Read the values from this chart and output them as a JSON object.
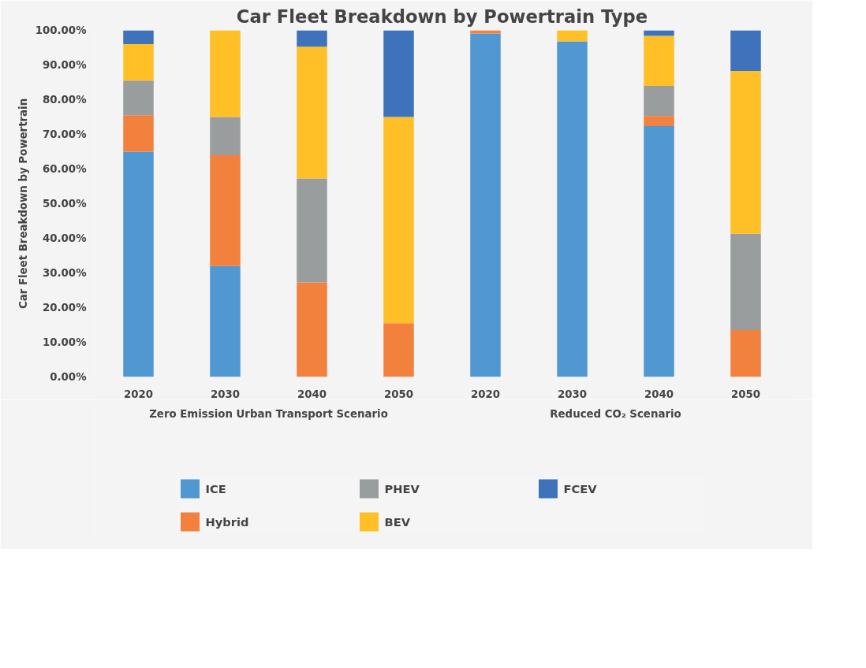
{
  "chart_data": {
    "type": "bar",
    "stacked": true,
    "title": "Car Fleet Breakdown by Powertrain Type",
    "ylabel": "Car Fleet Breakdown by Powertrain",
    "categories": [
      "2020",
      "2030",
      "2040",
      "2050",
      "2020",
      "2030",
      "2040",
      "2050"
    ],
    "series": [
      {
        "name": "ICE",
        "color": "#5197d2",
        "values": [
          65,
          32,
          0,
          0,
          99.1,
          96.8,
          72.4,
          0
        ]
      },
      {
        "name": "Hybrid",
        "color": "#f1813d",
        "values": [
          10.5,
          32,
          27.3,
          15.5,
          0.9,
          0,
          2.9,
          13.5
        ]
      },
      {
        "name": "PHEV",
        "color": "#9a9d9e",
        "values": [
          10,
          11,
          30,
          0,
          0,
          0,
          8.7,
          27.8
        ]
      },
      {
        "name": "BEV",
        "color": "#ffbf27",
        "values": [
          10.5,
          25,
          38,
          59.5,
          0,
          3.2,
          14.4,
          47
        ]
      },
      {
        "name": "FCEV",
        "color": "#3e73bb",
        "values": [
          4,
          0,
          4.7,
          25,
          0,
          0,
          1.6,
          11.7
        ]
      }
    ],
    "ylim": [
      0,
      100
    ],
    "yticks": [
      {
        "value": 0,
        "label": "0.00%"
      },
      {
        "value": 10,
        "label": "10.00%"
      },
      {
        "value": 20,
        "label": "20.00%"
      },
      {
        "value": 30,
        "label": "30.00%"
      },
      {
        "value": 40,
        "label": "40.00%"
      },
      {
        "value": 50,
        "label": "50.00%"
      },
      {
        "value": 60,
        "label": "60.00%"
      },
      {
        "value": 70,
        "label": "70.00%"
      },
      {
        "value": 80,
        "label": "80.00%"
      },
      {
        "value": 90,
        "label": "90.00%"
      },
      {
        "value": 100,
        "label": "100.00%"
      }
    ],
    "annotations": [
      "Zero Emission Urban Transport Scenario",
      "Reduced CO₂ Scenario"
    ],
    "grid": false,
    "legend": "bottom"
  }
}
